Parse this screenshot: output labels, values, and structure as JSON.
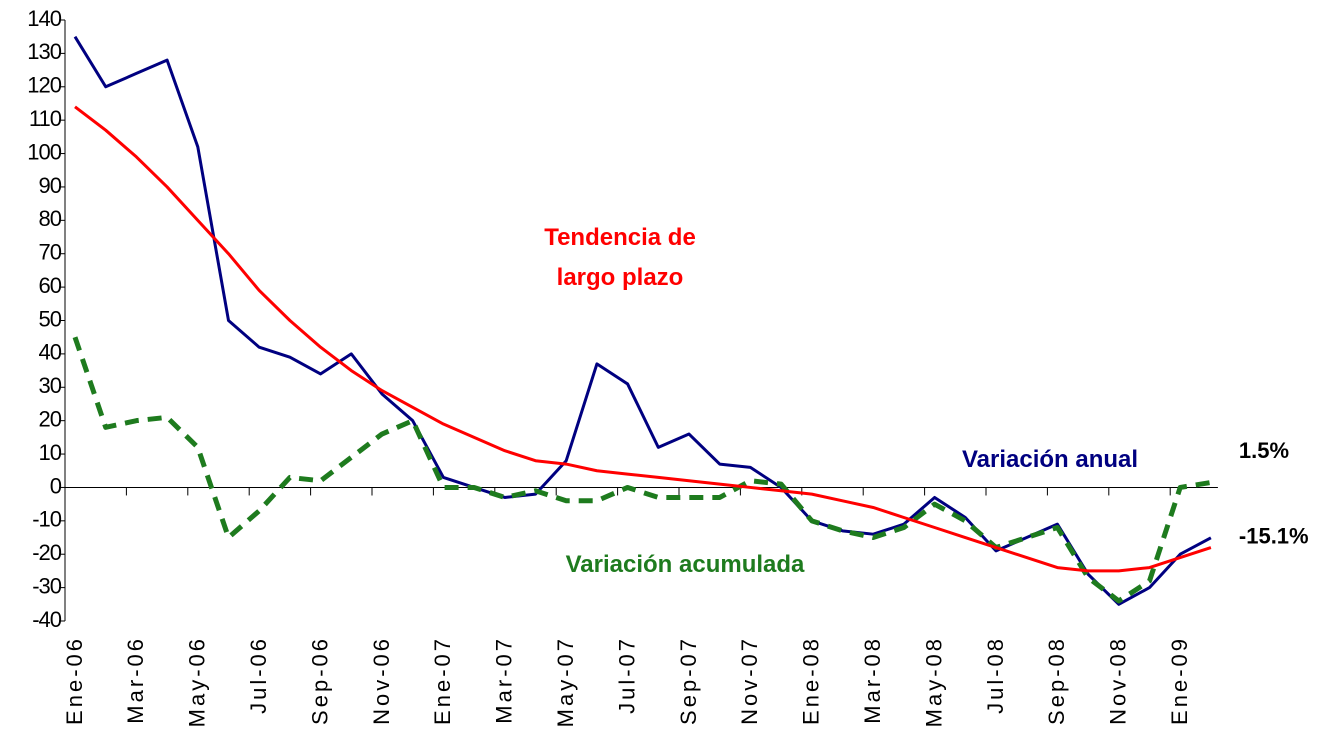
{
  "chart_data": {
    "type": "line",
    "categories": [
      "Ene-06",
      null,
      "Mar-06",
      null,
      "May-06",
      null,
      "Jul-06",
      null,
      "Sep-06",
      null,
      "Nov-06",
      null,
      "Ene-07",
      null,
      "Mar-07",
      null,
      "May-07",
      null,
      "Jul-07",
      null,
      "Sep-07",
      null,
      "Nov-07",
      null,
      "Ene-08",
      null,
      "Mar-08",
      null,
      "May-08",
      null,
      "Jul-08",
      null,
      "Sep-08",
      null,
      "Nov-08",
      null,
      "Ene-09",
      null
    ],
    "series": [
      {
        "name": "Variación anual",
        "color": "#000080",
        "dash": false,
        "values": [
          135,
          120,
          124,
          128,
          102,
          50,
          42,
          39,
          34,
          40,
          28,
          20,
          3,
          0,
          -3,
          -2,
          8,
          37,
          31,
          12,
          16,
          7,
          6,
          0,
          -10,
          -13,
          -14,
          -11,
          -3,
          -9,
          -19,
          -15,
          -11,
          -26,
          -35,
          -30,
          -20,
          -15.1
        ],
        "value_labels": [
          null,
          null,
          null,
          null,
          null,
          null,
          null,
          null,
          null,
          null,
          null,
          null,
          null,
          null,
          null,
          null,
          null,
          null,
          null,
          null,
          null,
          null,
          null,
          null,
          null,
          null,
          null,
          null,
          null,
          null,
          null,
          null,
          null,
          null,
          null,
          null,
          null,
          "-15.1%"
        ]
      },
      {
        "name": "Variación acumulada",
        "color": "#1e7b1e",
        "dash": true,
        "values": [
          45,
          18,
          20,
          21,
          12,
          -15,
          -7,
          3,
          2,
          9,
          16,
          20,
          0,
          0,
          -3,
          -1,
          -4,
          -4,
          0,
          -3,
          -3,
          -3,
          2,
          1,
          -10,
          -13,
          -15,
          -12,
          -5,
          -10,
          -18,
          -15,
          -12,
          -27,
          -34,
          -28,
          0,
          1.5
        ],
        "value_labels": [
          null,
          null,
          null,
          null,
          null,
          null,
          null,
          null,
          null,
          null,
          null,
          null,
          null,
          null,
          null,
          null,
          null,
          null,
          null,
          null,
          null,
          null,
          null,
          null,
          null,
          null,
          null,
          null,
          null,
          null,
          null,
          null,
          null,
          null,
          null,
          null,
          null,
          "1.5%"
        ]
      },
      {
        "name": "Tendencia de largo plazo",
        "color": "#ff0000",
        "dash": false,
        "values": [
          114,
          107,
          99,
          90,
          80,
          70,
          59,
          50,
          42,
          35,
          29,
          24,
          19,
          15,
          11,
          8,
          7,
          5,
          4,
          3,
          2,
          1,
          0,
          -1,
          -2,
          -4,
          -6,
          -9,
          -12,
          -15,
          -18,
          -21,
          -24,
          -25,
          -25,
          -24,
          -21,
          -18
        ]
      }
    ],
    "ylim": [
      -40,
      140
    ],
    "yticks": [
      -40,
      -30,
      -20,
      -10,
      0,
      10,
      20,
      30,
      40,
      50,
      60,
      70,
      80,
      90,
      100,
      110,
      120,
      130,
      140
    ]
  }
}
